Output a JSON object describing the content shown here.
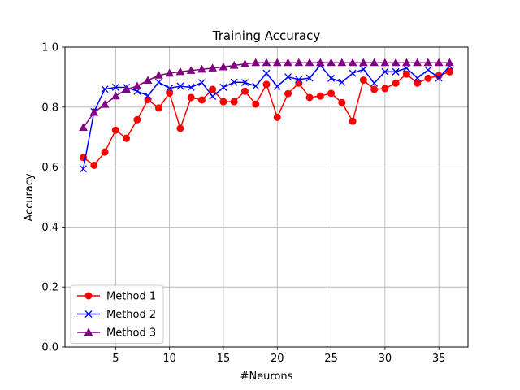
{
  "chart_data": {
    "type": "line",
    "title": "Training Accuracy",
    "xlabel": "#Neurons",
    "ylabel": "Accuracy",
    "xlim": [
      0.3,
      37.7
    ],
    "ylim": [
      0.0,
      1.0
    ],
    "xticks": [
      5,
      10,
      15,
      20,
      25,
      30,
      35
    ],
    "yticks": [
      0.0,
      0.2,
      0.4,
      0.6,
      0.8,
      1.0
    ],
    "xtick_labels": [
      "5",
      "10",
      "15",
      "20",
      "25",
      "30",
      "35"
    ],
    "ytick_labels": [
      "0.0",
      "0.2",
      "0.4",
      "0.6",
      "0.8",
      "1.0"
    ],
    "grid": true,
    "legend_position": "lower-left",
    "x": [
      2,
      3,
      4,
      5,
      6,
      7,
      8,
      9,
      10,
      11,
      12,
      13,
      14,
      15,
      16,
      17,
      18,
      19,
      20,
      21,
      22,
      23,
      24,
      25,
      26,
      27,
      28,
      29,
      30,
      31,
      32,
      33,
      34,
      35,
      36
    ],
    "series": [
      {
        "name": "Method 1",
        "color": "#ff0000",
        "marker": "circle",
        "values": [
          0.632,
          0.606,
          0.65,
          0.723,
          0.696,
          0.758,
          0.825,
          0.797,
          0.847,
          0.729,
          0.832,
          0.824,
          0.859,
          0.818,
          0.818,
          0.853,
          0.81,
          0.876,
          0.766,
          0.845,
          0.88,
          0.832,
          0.837,
          0.846,
          0.815,
          0.753,
          0.89,
          0.859,
          0.862,
          0.88,
          0.91,
          0.88,
          0.896,
          0.905,
          0.918
        ]
      },
      {
        "name": "Method 2",
        "color": "#0000ff",
        "marker": "x",
        "values": [
          0.594,
          0.785,
          0.86,
          0.866,
          0.866,
          0.853,
          0.838,
          0.883,
          0.863,
          0.87,
          0.866,
          0.882,
          0.836,
          0.866,
          0.883,
          0.882,
          0.87,
          0.913,
          0.869,
          0.901,
          0.892,
          0.897,
          0.94,
          0.896,
          0.883,
          0.913,
          0.926,
          0.88,
          0.918,
          0.918,
          0.93,
          0.897,
          0.924,
          0.897,
          0.936
        ]
      },
      {
        "name": "Method 3",
        "color": "#800080",
        "marker": "triangle",
        "values": [
          0.732,
          0.782,
          0.809,
          0.837,
          0.859,
          0.87,
          0.889,
          0.906,
          0.913,
          0.918,
          0.922,
          0.926,
          0.93,
          0.934,
          0.939,
          0.944,
          0.948,
          0.948,
          0.948,
          0.948,
          0.948,
          0.948,
          0.948,
          0.948,
          0.948,
          0.948,
          0.948,
          0.948,
          0.948,
          0.948,
          0.948,
          0.948,
          0.948,
          0.948,
          0.948
        ]
      }
    ]
  }
}
